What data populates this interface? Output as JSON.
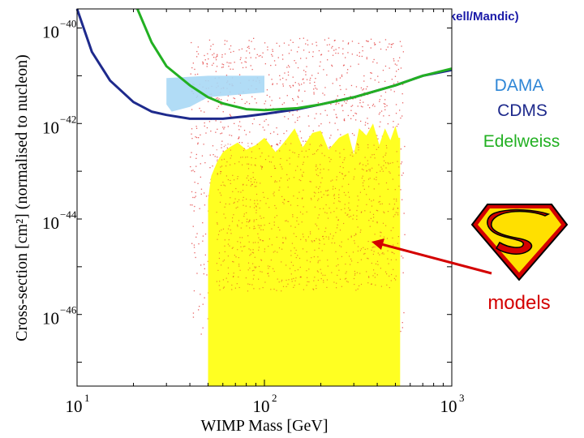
{
  "header": {
    "url": "http://dmtools.berkeley.edu (Gaitskell/Mandic)"
  },
  "legend": {
    "items": [
      {
        "label": "DAMA",
        "color": "#2e86d6"
      },
      {
        "label": "CDMS",
        "color": "#1e2a8c"
      },
      {
        "label": "Edelweiss",
        "color": "#22b022"
      }
    ]
  },
  "callout": {
    "label": "models",
    "color": "#d40000"
  },
  "chart_data": {
    "type": "scatter",
    "title": "",
    "xlabel": "WIMP Mass [GeV]",
    "ylabel": "Cross-section [cm²] (normalised to nucleon)",
    "xscale": "log",
    "yscale": "log",
    "xlim": [
      10,
      1000
    ],
    "ylim_exp": [
      -47.5,
      -39.6
    ],
    "x_ticks": [
      {
        "value": 10,
        "base": "10",
        "exp": "1"
      },
      {
        "value": 100,
        "base": "10",
        "exp": "2"
      },
      {
        "value": 1000,
        "base": "10",
        "exp": "3"
      }
    ],
    "y_ticks": [
      {
        "exp_value": -40,
        "base": "10",
        "exp": "−40"
      },
      {
        "exp_value": -42,
        "base": "10",
        "exp": "−42"
      },
      {
        "exp_value": -44,
        "base": "10",
        "exp": "−44"
      },
      {
        "exp_value": -46,
        "base": "10",
        "exp": "−46"
      }
    ],
    "series": [
      {
        "name": "CDMS",
        "kind": "line",
        "color": "#1e2a8c",
        "points": [
          [
            10,
            -39.6
          ],
          [
            12,
            -40.5
          ],
          [
            15,
            -41.1
          ],
          [
            20,
            -41.55
          ],
          [
            25,
            -41.75
          ],
          [
            30,
            -41.82
          ],
          [
            40,
            -41.9
          ],
          [
            60,
            -41.9
          ],
          [
            80,
            -41.85
          ],
          [
            100,
            -41.8
          ],
          [
            150,
            -41.7
          ],
          [
            200,
            -41.6
          ],
          [
            300,
            -41.45
          ],
          [
            500,
            -41.2
          ],
          [
            700,
            -41.0
          ],
          [
            1000,
            -40.88
          ]
        ]
      },
      {
        "name": "Edelweiss",
        "kind": "line",
        "color": "#22b022",
        "points": [
          [
            21,
            -39.6
          ],
          [
            25,
            -40.3
          ],
          [
            30,
            -40.8
          ],
          [
            40,
            -41.2
          ],
          [
            50,
            -41.45
          ],
          [
            60,
            -41.58
          ],
          [
            80,
            -41.7
          ],
          [
            100,
            -41.72
          ],
          [
            150,
            -41.68
          ],
          [
            200,
            -41.6
          ],
          [
            300,
            -41.45
          ],
          [
            500,
            -41.2
          ],
          [
            700,
            -41.0
          ],
          [
            1000,
            -40.85
          ]
        ]
      },
      {
        "name": "DAMA",
        "kind": "region",
        "color": "#a9d8f5",
        "points": [
          [
            30,
            -41.05
          ],
          [
            50,
            -41.0
          ],
          [
            100,
            -41.0
          ],
          [
            100,
            -41.35
          ],
          [
            50,
            -41.45
          ],
          [
            40,
            -41.65
          ],
          [
            32,
            -41.75
          ],
          [
            30,
            -41.6
          ]
        ]
      },
      {
        "name": "models (allowed region)",
        "kind": "region",
        "color": "#ffff22",
        "points": [
          [
            50,
            -47.5
          ],
          [
            50,
            -43.6
          ],
          [
            52,
            -43.1
          ],
          [
            56,
            -42.8
          ],
          [
            60,
            -42.6
          ],
          [
            65,
            -42.5
          ],
          [
            72,
            -42.4
          ],
          [
            80,
            -42.55
          ],
          [
            90,
            -42.45
          ],
          [
            100,
            -42.3
          ],
          [
            115,
            -42.6
          ],
          [
            130,
            -42.35
          ],
          [
            145,
            -42.1
          ],
          [
            160,
            -42.5
          ],
          [
            180,
            -42.2
          ],
          [
            200,
            -42.15
          ],
          [
            220,
            -42.55
          ],
          [
            250,
            -42.3
          ],
          [
            280,
            -42.2
          ],
          [
            300,
            -42.65
          ],
          [
            320,
            -42.1
          ],
          [
            350,
            -42.25
          ],
          [
            380,
            -42.0
          ],
          [
            410,
            -42.45
          ],
          [
            440,
            -42.1
          ],
          [
            470,
            -42.35
          ],
          [
            500,
            -42.05
          ],
          [
            520,
            -42.3
          ],
          [
            530,
            -42.3
          ],
          [
            530,
            -47.5
          ]
        ]
      }
    ]
  }
}
